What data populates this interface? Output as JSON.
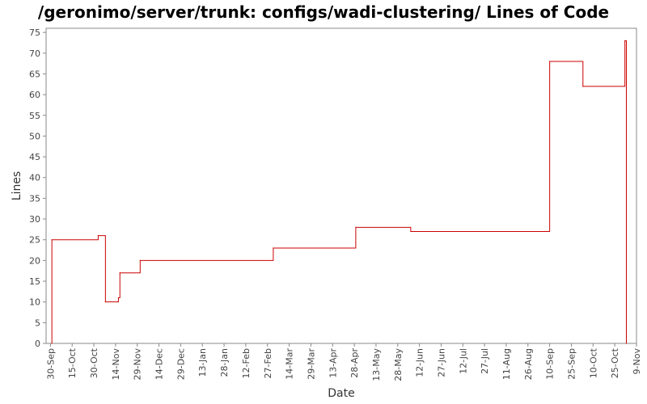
{
  "chart_data": {
    "type": "line",
    "title": "/geronimo/server/trunk: configs/wadi-clustering/ Lines of Code",
    "xlabel": "Date",
    "ylabel": "Lines",
    "ylim": [
      0,
      76
    ],
    "yticks": [
      0,
      5,
      10,
      15,
      20,
      25,
      30,
      35,
      40,
      45,
      50,
      55,
      60,
      65,
      70,
      75
    ],
    "xlim": [
      "2006-09-27",
      "2007-11-09"
    ],
    "xticks": [
      {
        "date": "2006-09-30",
        "label": "30-Sep"
      },
      {
        "date": "2006-10-15",
        "label": "15-Oct"
      },
      {
        "date": "2006-10-30",
        "label": "30-Oct"
      },
      {
        "date": "2006-11-14",
        "label": "14-Nov"
      },
      {
        "date": "2006-11-29",
        "label": "29-Nov"
      },
      {
        "date": "2006-12-14",
        "label": "14-Dec"
      },
      {
        "date": "2006-12-29",
        "label": "29-Dec"
      },
      {
        "date": "2007-01-13",
        "label": "13-Jan"
      },
      {
        "date": "2007-01-28",
        "label": "28-Jan"
      },
      {
        "date": "2007-02-12",
        "label": "12-Feb"
      },
      {
        "date": "2007-02-27",
        "label": "27-Feb"
      },
      {
        "date": "2007-03-14",
        "label": "14-Mar"
      },
      {
        "date": "2007-03-29",
        "label": "29-Mar"
      },
      {
        "date": "2007-04-13",
        "label": "13-Apr"
      },
      {
        "date": "2007-04-28",
        "label": "28-Apr"
      },
      {
        "date": "2007-05-13",
        "label": "13-May"
      },
      {
        "date": "2007-05-28",
        "label": "28-May"
      },
      {
        "date": "2007-06-12",
        "label": "12-Jun"
      },
      {
        "date": "2007-06-27",
        "label": "27-Jun"
      },
      {
        "date": "2007-07-12",
        "label": "12-Jul"
      },
      {
        "date": "2007-07-27",
        "label": "27-Jul"
      },
      {
        "date": "2007-08-11",
        "label": "11-Aug"
      },
      {
        "date": "2007-08-26",
        "label": "26-Aug"
      },
      {
        "date": "2007-09-10",
        "label": "10-Sep"
      },
      {
        "date": "2007-09-25",
        "label": "25-Sep"
      },
      {
        "date": "2007-10-10",
        "label": "10-Oct"
      },
      {
        "date": "2007-10-25",
        "label": "25-Oct"
      },
      {
        "date": "2007-11-09",
        "label": "9-Nov"
      }
    ],
    "series": [
      {
        "color": "#cc0000",
        "step": true,
        "points": [
          {
            "x": "2006-10-01",
            "y": 0
          },
          {
            "x": "2006-10-01",
            "y": 25
          },
          {
            "x": "2006-11-02",
            "y": 26
          },
          {
            "x": "2006-11-07",
            "y": 10
          },
          {
            "x": "2006-11-16",
            "y": 11
          },
          {
            "x": "2006-11-17",
            "y": 17
          },
          {
            "x": "2006-12-01",
            "y": 20
          },
          {
            "x": "2007-03-03",
            "y": 23
          },
          {
            "x": "2007-04-29",
            "y": 28
          },
          {
            "x": "2007-06-06",
            "y": 27
          },
          {
            "x": "2007-09-10",
            "y": 68
          },
          {
            "x": "2007-10-03",
            "y": 62
          },
          {
            "x": "2007-11-01",
            "y": 73
          },
          {
            "x": "2007-11-02",
            "y": 0
          }
        ]
      }
    ],
    "grid": false,
    "background": "#ffffff",
    "axis_color": "#888888"
  }
}
